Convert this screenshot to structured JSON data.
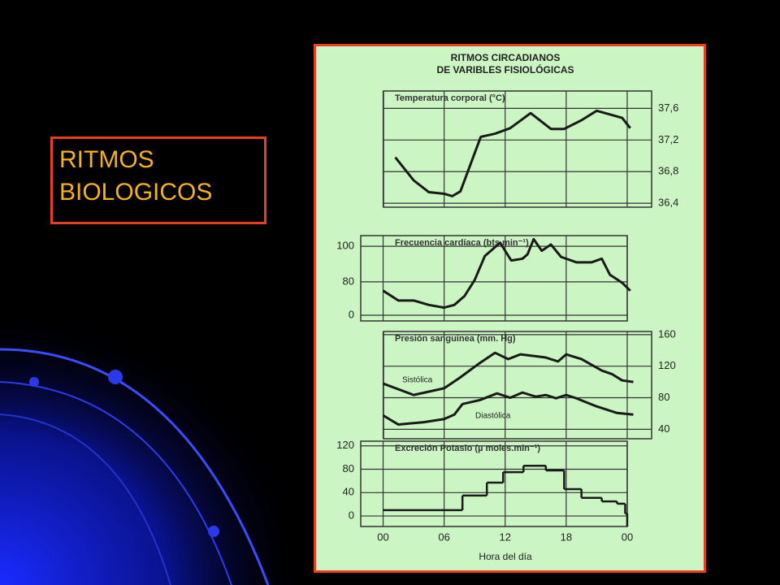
{
  "slide": {
    "title": "RITMOS BIOLOGICOS"
  },
  "figure": {
    "title": [
      "RITMOS CIRCADIANOS",
      "DE VARIBLES FISIOLÓGICAS"
    ],
    "xlabel": "Hora del día",
    "xlim": [
      -2.2,
      26.4
    ],
    "xticks": [
      {
        "value": 0,
        "label": "00"
      },
      {
        "value": 6,
        "label": "06"
      },
      12,
      18,
      {
        "value": 24,
        "label": "00"
      }
    ]
  },
  "chart_data": [
    {
      "type": "line",
      "title": "Temperatura corporal (°C)",
      "color": "#1a1a1a",
      "x": [
        1.2,
        3,
        4.5,
        6,
        6.8,
        7.6,
        9.6,
        11,
        12.5,
        14.5,
        16.5,
        17.8,
        19.5,
        21,
        23.5,
        24.3
      ],
      "values": [
        36.98,
        36.69,
        36.54,
        36.52,
        36.49,
        36.55,
        37.24,
        37.28,
        37.35,
        37.54,
        37.34,
        37.34,
        37.45,
        37.57,
        37.48,
        37.35
      ],
      "ylim": [
        36.35,
        37.82
      ],
      "yticks": [
        {
          "value": 36.4,
          "label": "36,4"
        },
        {
          "value": 36.8,
          "label": "36,8"
        },
        {
          "value": 37.2,
          "label": "37,2"
        },
        {
          "value": 37.6,
          "label": "37,6"
        }
      ],
      "axis_side": "right"
    },
    {
      "type": "line",
      "title": "Frecuencia cardíaca (bts.min⁻¹)",
      "color": "#1a1a1a",
      "x": [
        0,
        1.5,
        3,
        4.5,
        6,
        7,
        8,
        9,
        10,
        11.5,
        12.6,
        13.7,
        14.2,
        14.8,
        15.6,
        16.5,
        17.5,
        19,
        20.5,
        21.5,
        22.3,
        23.5,
        24.3
      ],
      "values": [
        75,
        69.5,
        69.5,
        67,
        65.5,
        67,
        72,
        81,
        94.5,
        102,
        92,
        93,
        95.5,
        104,
        97.5,
        101,
        94,
        91,
        91,
        93,
        84,
        79.5,
        75
      ],
      "ylim": [
        58,
        106
      ],
      "yticks": [
        0,
        80,
        100
      ],
      "axis_break": true,
      "axis_side": "left"
    },
    {
      "type": "line",
      "title": "Presión sanguínea (mm. Hg)",
      "axis_side": "right",
      "ylim": [
        28,
        164
      ],
      "yticks": [
        40,
        80,
        120,
        160
      ],
      "series": [
        {
          "name": "Sistólica",
          "color": "#1a1a1a",
          "x": [
            0,
            3,
            6,
            7.5,
            9.5,
            11,
            12.3,
            13.5,
            16,
            17.2,
            18,
            19.5,
            21.5,
            22.5,
            23.5,
            24.6
          ],
          "values": [
            98,
            83.5,
            92,
            105,
            124,
            137,
            129,
            135,
            131,
            126,
            135,
            129,
            114.5,
            110,
            102,
            100
          ]
        },
        {
          "name": "Diastólica",
          "color": "#1a1a1a",
          "x": [
            0,
            1.5,
            4,
            6,
            7,
            7.8,
            9.5,
            11.2,
            12.5,
            13.7,
            15,
            16,
            17,
            18,
            19,
            21,
            23,
            24.6
          ],
          "values": [
            57.6,
            46,
            49,
            53,
            58.6,
            72,
            77,
            85.5,
            80,
            86.6,
            81.4,
            83.5,
            79.3,
            83.5,
            79.3,
            69,
            60.7,
            58.6
          ]
        }
      ]
    },
    {
      "type": "step",
      "title": "Excreción Potasio (µ moles.min⁻¹)",
      "color": "#1a1a1a",
      "x": [
        0,
        7.8,
        10.2,
        11.8,
        13.8,
        16,
        17.8,
        19.5,
        21.5,
        23,
        23.8
      ],
      "values": [
        10,
        35,
        57,
        75,
        86,
        78,
        46,
        31,
        25,
        21,
        4
      ],
      "step_end": 24,
      "ylim": [
        -18,
        128
      ],
      "yticks": [
        0,
        40,
        80,
        120
      ],
      "axis_side": "left"
    }
  ]
}
